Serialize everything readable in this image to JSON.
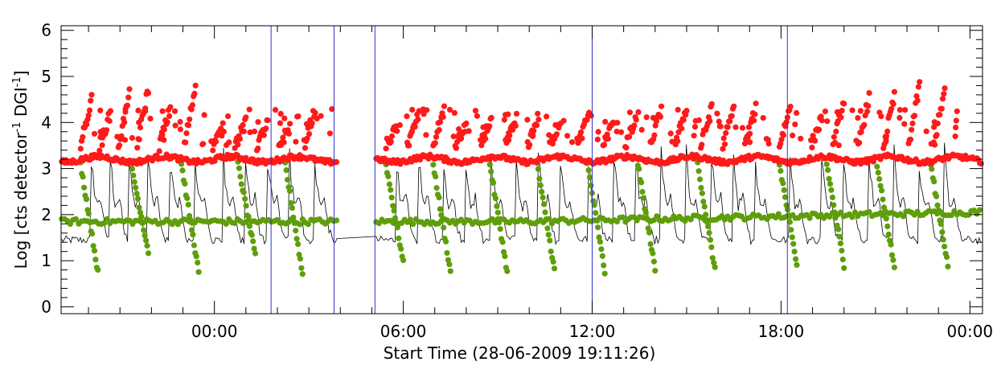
{
  "chart_data": {
    "type": "scatter",
    "title": "",
    "xlabel": "Start Time (28-06-2009 19:11:26)",
    "ylabel_parts": {
      "prefix": "Log [cts detector",
      "sup1": "-1",
      "middle": " DGI",
      "sup2": "-1",
      "suffix": "]"
    },
    "xlim_hours": [
      -4.87,
      24.4
    ],
    "ylim": [
      -0.15,
      6.1
    ],
    "x_ticks": [
      {
        "hours": 0,
        "label": "00:00"
      },
      {
        "hours": 6,
        "label": "06:00"
      },
      {
        "hours": 12,
        "label": "12:00"
      },
      {
        "hours": 18,
        "label": "18:00"
      },
      {
        "hours": 24,
        "label": "00:00"
      }
    ],
    "y_ticks": [
      {
        "value": 0,
        "label": "0"
      },
      {
        "value": 1,
        "label": "1"
      },
      {
        "value": 2,
        "label": "2"
      },
      {
        "value": 3,
        "label": "3"
      },
      {
        "value": 4,
        "label": "4"
      },
      {
        "value": 5,
        "label": "5"
      },
      {
        "value": 6,
        "label": "6"
      }
    ],
    "vertical_lines_hours": [
      1.8,
      3.8,
      5.1,
      12.0,
      18.2
    ],
    "gap_hours": [
      3.9,
      5.1
    ],
    "series": [
      {
        "color": "#ff1a1a",
        "marker": "circle",
        "baseline": 3.2,
        "peaks": [
          {
            "t": -3.9,
            "v": 4.5
          },
          {
            "t": -3.3,
            "v": 4.2
          },
          {
            "t": -2.7,
            "v": 4.6
          },
          {
            "t": -2.1,
            "v": 4.75
          },
          {
            "t": -1.4,
            "v": 4.3
          },
          {
            "t": -0.6,
            "v": 4.8
          },
          {
            "t": 0.3,
            "v": 3.9
          },
          {
            "t": 1.0,
            "v": 4.0
          },
          {
            "t": 1.7,
            "v": 4.0
          },
          {
            "t": 2.4,
            "v": 3.9
          },
          {
            "t": 3.2,
            "v": 4.3
          },
          {
            "t": 5.8,
            "v": 3.9
          },
          {
            "t": 6.5,
            "v": 4.2
          },
          {
            "t": 7.3,
            "v": 4.3
          },
          {
            "t": 8.0,
            "v": 3.9
          },
          {
            "t": 8.8,
            "v": 4.1
          },
          {
            "t": 9.6,
            "v": 4.1
          },
          {
            "t": 10.3,
            "v": 4.15
          },
          {
            "t": 11.0,
            "v": 4.05
          },
          {
            "t": 11.9,
            "v": 4.2
          },
          {
            "t": 12.7,
            "v": 4.05
          },
          {
            "t": 13.4,
            "v": 4.05
          },
          {
            "t": 14.2,
            "v": 4.3
          },
          {
            "t": 15.0,
            "v": 4.35
          },
          {
            "t": 15.8,
            "v": 4.3
          },
          {
            "t": 16.5,
            "v": 4.3
          },
          {
            "t": 17.2,
            "v": 4.3
          },
          {
            "t": 18.3,
            "v": 4.35
          },
          {
            "t": 19.3,
            "v": 4.1
          },
          {
            "t": 20.0,
            "v": 4.5
          },
          {
            "t": 20.8,
            "v": 4.55
          },
          {
            "t": 21.6,
            "v": 4.55
          },
          {
            "t": 22.4,
            "v": 4.8
          },
          {
            "t": 23.2,
            "v": 4.7
          }
        ]
      },
      {
        "color": "#5e9e0a",
        "marker": "circle",
        "baseline": 1.85,
        "troughs": [
          {
            "t": -3.7,
            "v": 0.75
          },
          {
            "t": -2.1,
            "v": 1.2
          },
          {
            "t": -0.5,
            "v": 0.75
          },
          {
            "t": 1.3,
            "v": 1.1
          },
          {
            "t": 2.8,
            "v": 0.7
          },
          {
            "t": 6.0,
            "v": 0.95
          },
          {
            "t": 7.5,
            "v": 0.75
          },
          {
            "t": 9.3,
            "v": 0.75
          },
          {
            "t": 10.8,
            "v": 0.8
          },
          {
            "t": 12.4,
            "v": 0.75
          },
          {
            "t": 14.0,
            "v": 0.8
          },
          {
            "t": 15.9,
            "v": 0.8
          },
          {
            "t": 18.5,
            "v": 0.9
          },
          {
            "t": 20.0,
            "v": 0.9
          },
          {
            "t": 21.6,
            "v": 0.85
          },
          {
            "t": 23.3,
            "v": 0.9
          }
        ]
      },
      {
        "color": "#000000",
        "marker": "line",
        "baseline": 1.45,
        "peak_value": 3.4
      }
    ]
  }
}
